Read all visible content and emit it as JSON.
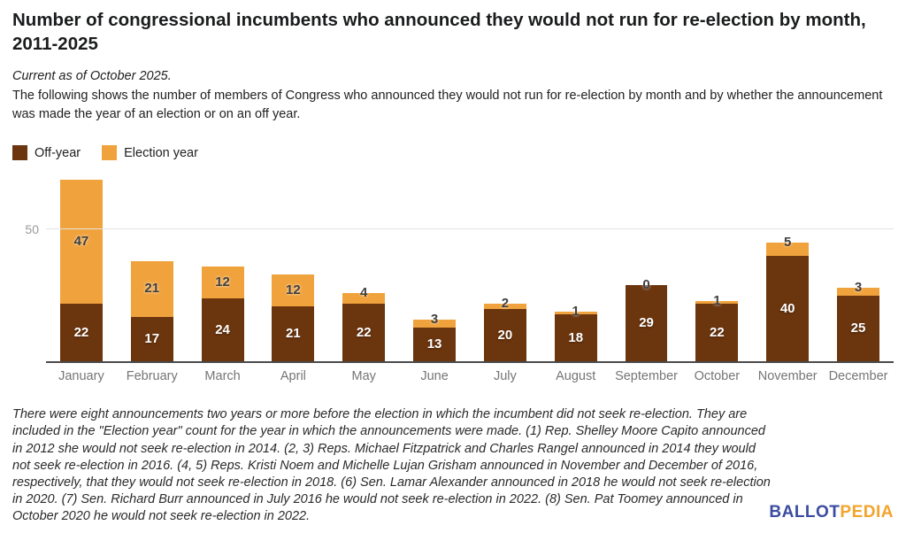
{
  "header": {
    "title": "Number of congressional incumbents who announced they would not run for re-election by month, 2011-2025",
    "current_as_of": "Current as of October 2025.",
    "description": "The following shows the number of members of Congress who announced they would not run for re-election by month and by whether the announcement was made the year of an election or on an off year."
  },
  "legend": {
    "items": [
      {
        "label": "Off-year",
        "color": "#6B350E"
      },
      {
        "label": "Election year",
        "color": "#F0A23C"
      }
    ]
  },
  "chart_data": {
    "type": "bar",
    "stacked": true,
    "categories": [
      "January",
      "February",
      "March",
      "April",
      "May",
      "June",
      "July",
      "August",
      "September",
      "October",
      "November",
      "December"
    ],
    "series": [
      {
        "name": "Off-year",
        "color": "#6B350E",
        "label_color": "light",
        "values": [
          22,
          17,
          24,
          21,
          22,
          13,
          20,
          18,
          29,
          22,
          40,
          25
        ]
      },
      {
        "name": "Election year",
        "color": "#F0A23C",
        "label_color": "dark",
        "values": [
          47,
          21,
          12,
          12,
          4,
          3,
          2,
          1,
          0,
          1,
          5,
          3
        ]
      }
    ],
    "title": "Number of congressional incumbents who announced they would not run for re-election by month, 2011-2025",
    "xlabel": "",
    "ylabel": "",
    "ylim": [
      0,
      71.5
    ],
    "y_ticks": [
      50
    ],
    "grid": true,
    "legend_position": "top-left",
    "data_labels": true
  },
  "footnote": "There were eight announcements two years or more before the election in which the incumbent did not seek re-election. They are included in the \"Election year\" count for the year in which the announcements were made. (1) Rep. Shelley Moore Capito announced in 2012 she would not seek re-election in 2014. (2, 3) Reps. Michael Fitzpatrick and Charles Rangel announced in 2014 they would not seek re-election in 2016. (4, 5) Reps. Kristi Noem and Michelle Lujan Grisham announced in November and December of 2016, respectively, that they would not seek re-election in 2018. (6) Sen. Lamar Alexander announced in 2018 he would not seek re-election in 2020. (7) Sen. Richard Burr announced in July 2016 he would not seek re-election in 2022. (8) Sen. Pat Toomey announced in October 2020 he would not seek re-election in 2022.",
  "logo": {
    "part1": "BALLOT",
    "part2": "PEDIA",
    "color1": "#3B4CA0",
    "color2": "#F2A42C"
  }
}
